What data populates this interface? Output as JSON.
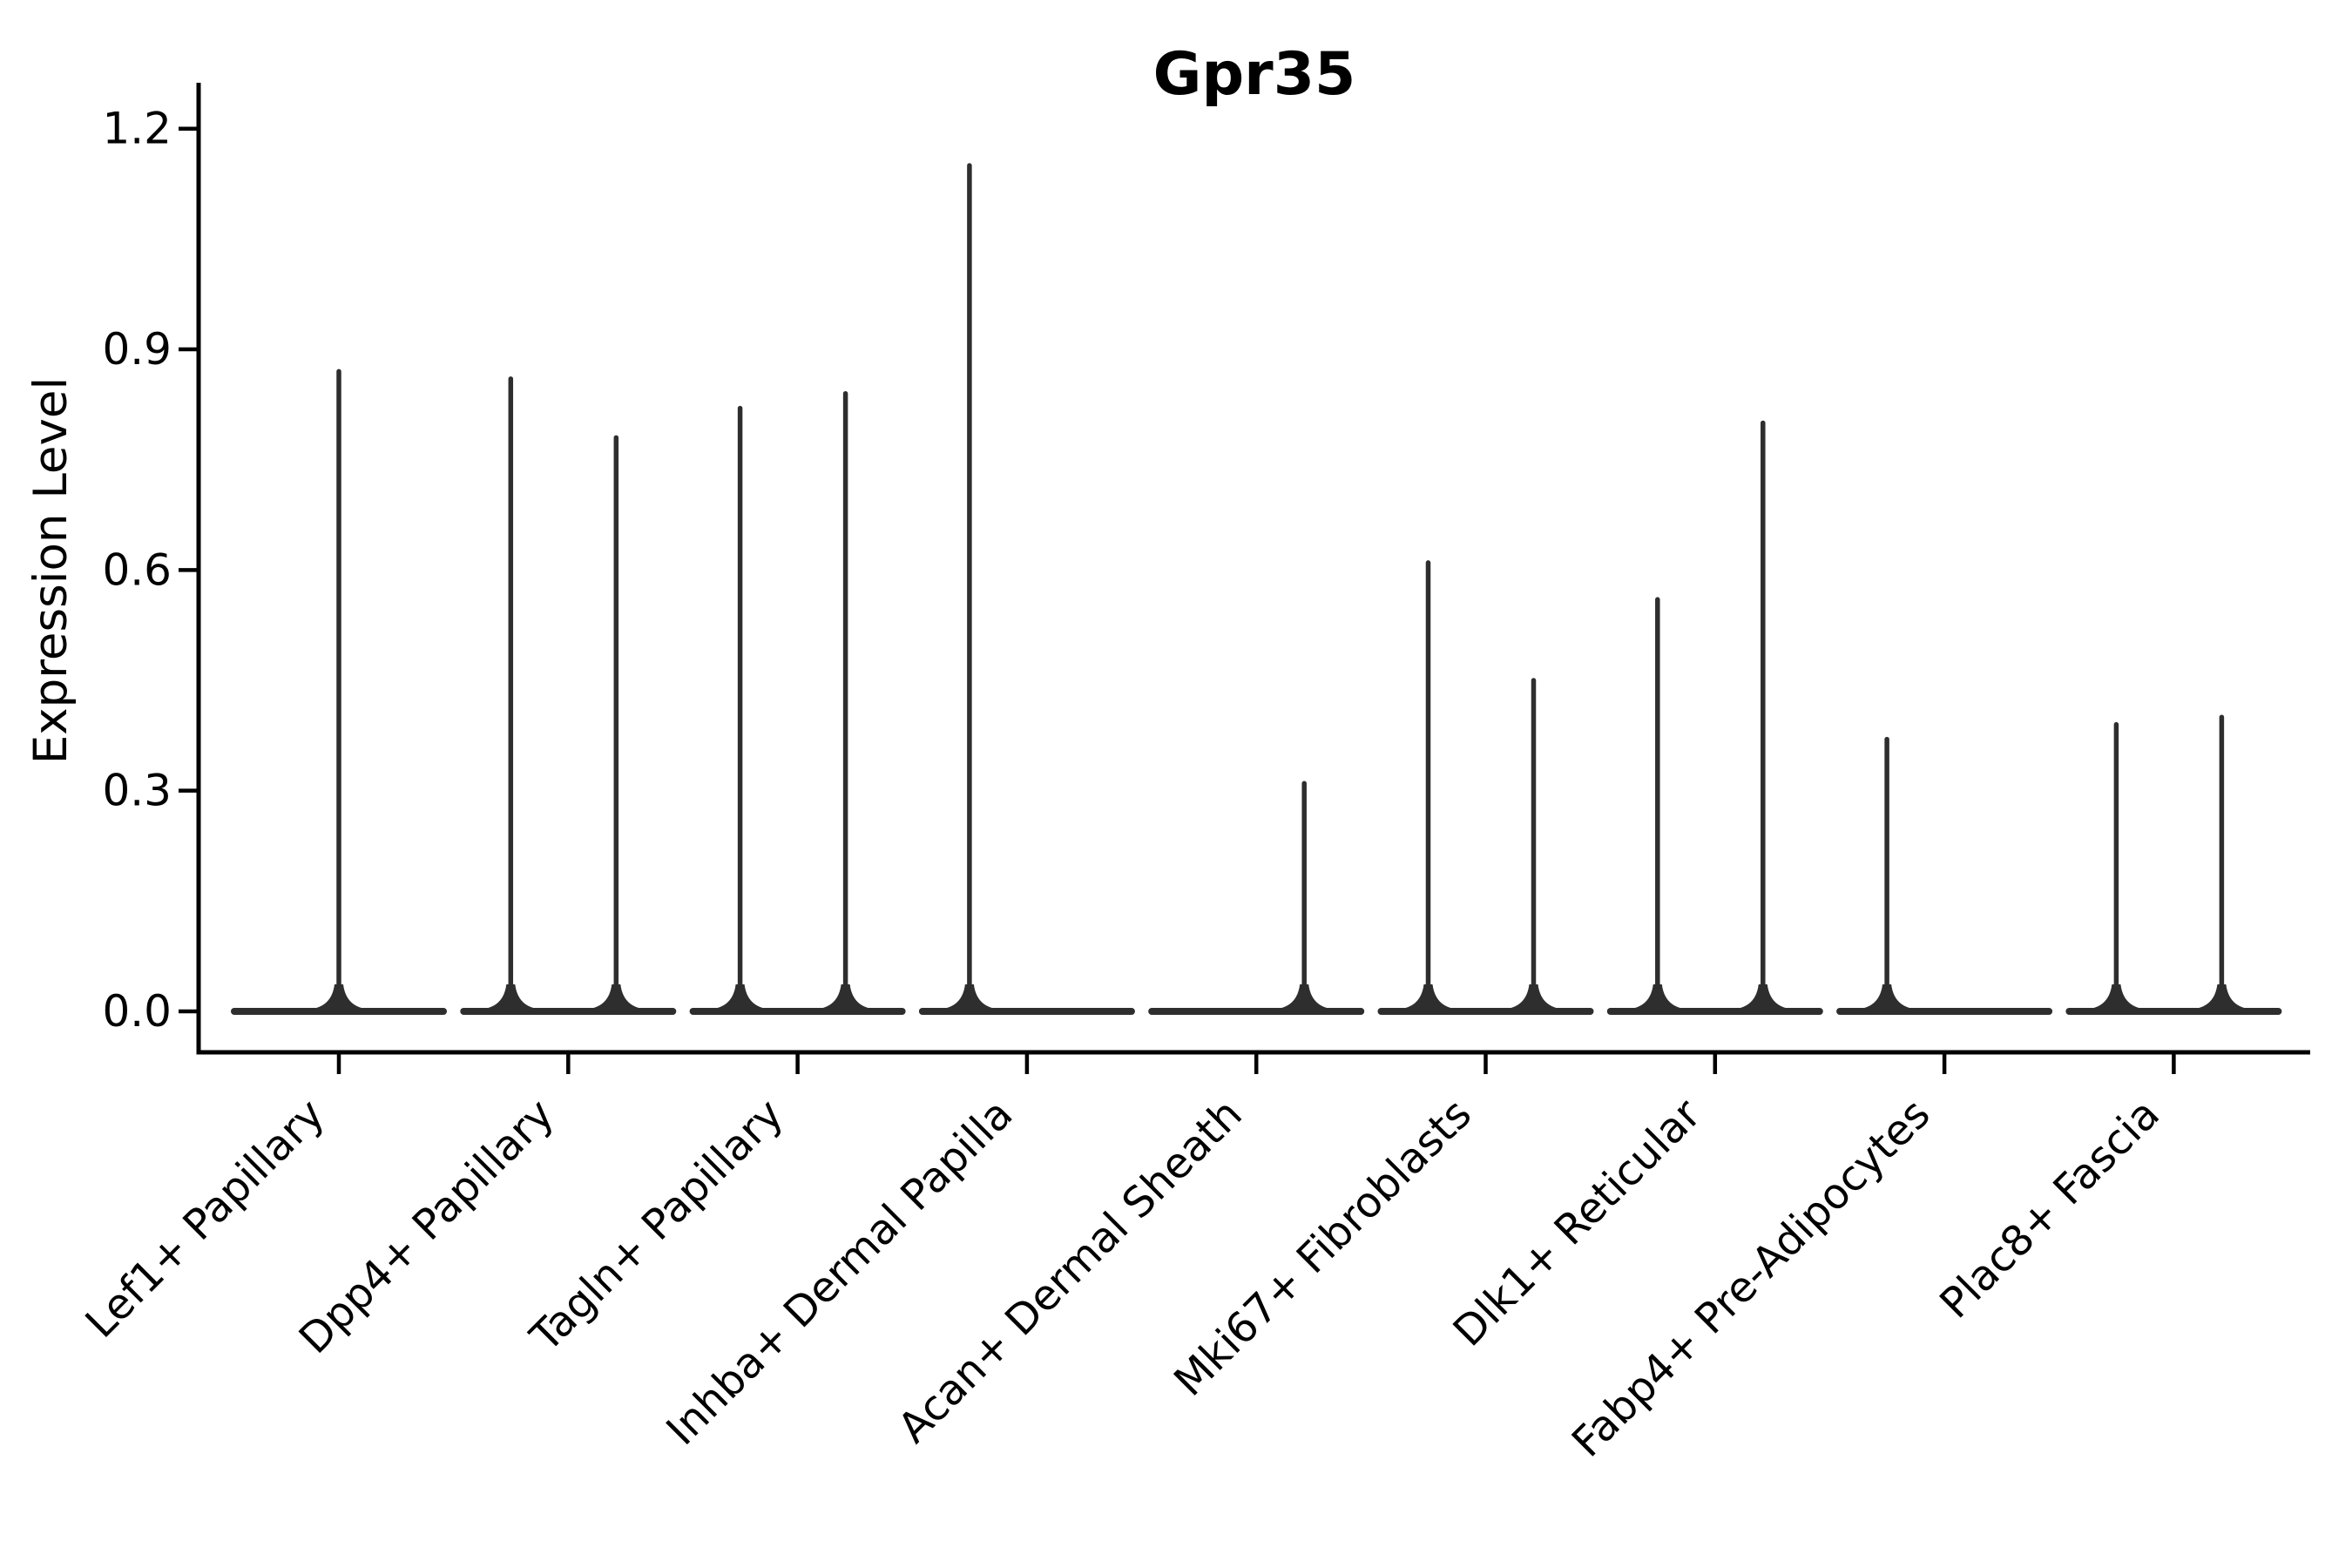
{
  "chart_data": {
    "type": "violin",
    "title": "Gpr35",
    "xlabel": "",
    "ylabel": "Expression Level",
    "ylim": [
      0,
      1.25
    ],
    "yticks": [
      "0.0",
      "0.3",
      "0.6",
      "0.9",
      "1.2"
    ],
    "ytick_values": [
      0.0,
      0.3,
      0.6,
      0.9,
      1.2
    ],
    "grid": false,
    "legend": "none",
    "note": "Each category shows violin(s) collapsed to a flat baseline at 0 (most cells zero) with a thin spike up to the maximum expression value",
    "categories": [
      "Lef1+ Papillary",
      "Dpp4+ Papillary",
      "Tagln+ Papillary",
      "Inhba+ Dermal Papilla",
      "Acan+ Dermal Sheath",
      "Mki67+ Fibroblasts",
      "Dlk1+ Reticular",
      "Fabp4+ Pre-Adipocytes",
      "Plac8+ Fascia"
    ],
    "groups": [
      {
        "label": "Lef1+ Papillary",
        "baseline_value": 0.0,
        "violins": [
          {
            "pos": "center",
            "max": 0.87
          }
        ]
      },
      {
        "label": "Dpp4+ Papillary",
        "baseline_value": 0.0,
        "violins": [
          {
            "pos": "left",
            "max": 0.86
          },
          {
            "pos": "right",
            "max": 0.78
          }
        ]
      },
      {
        "label": "Tagln+ Papillary",
        "baseline_value": 0.0,
        "violins": [
          {
            "pos": "left",
            "max": 0.82
          },
          {
            "pos": "right",
            "max": 0.84
          }
        ]
      },
      {
        "label": "Inhba+ Dermal Papilla",
        "baseline_value": 0.0,
        "violins": [
          {
            "pos": "left",
            "max": 1.15
          }
        ]
      },
      {
        "label": "Acan+ Dermal Sheath",
        "baseline_value": 0.0,
        "violins": [
          {
            "pos": "right",
            "max": 0.31
          }
        ]
      },
      {
        "label": "Mki67+ Fibroblasts",
        "baseline_value": 0.0,
        "violins": [
          {
            "pos": "left",
            "max": 0.61
          },
          {
            "pos": "right",
            "max": 0.45
          }
        ]
      },
      {
        "label": "Dlk1+ Reticular",
        "baseline_value": 0.0,
        "violins": [
          {
            "pos": "left",
            "max": 0.56
          },
          {
            "pos": "right",
            "max": 0.8
          }
        ]
      },
      {
        "label": "Fabp4+ Pre-Adipocytes",
        "baseline_value": 0.0,
        "violins": [
          {
            "pos": "left",
            "max": 0.37
          }
        ]
      },
      {
        "label": "Plac8+ Fascia",
        "baseline_value": 0.0,
        "violins": [
          {
            "pos": "left",
            "max": 0.39
          },
          {
            "pos": "right",
            "max": 0.4
          }
        ]
      }
    ],
    "colors": {
      "violin": "#2e2e2e",
      "axis": "#000000",
      "background": "#ffffff"
    }
  }
}
